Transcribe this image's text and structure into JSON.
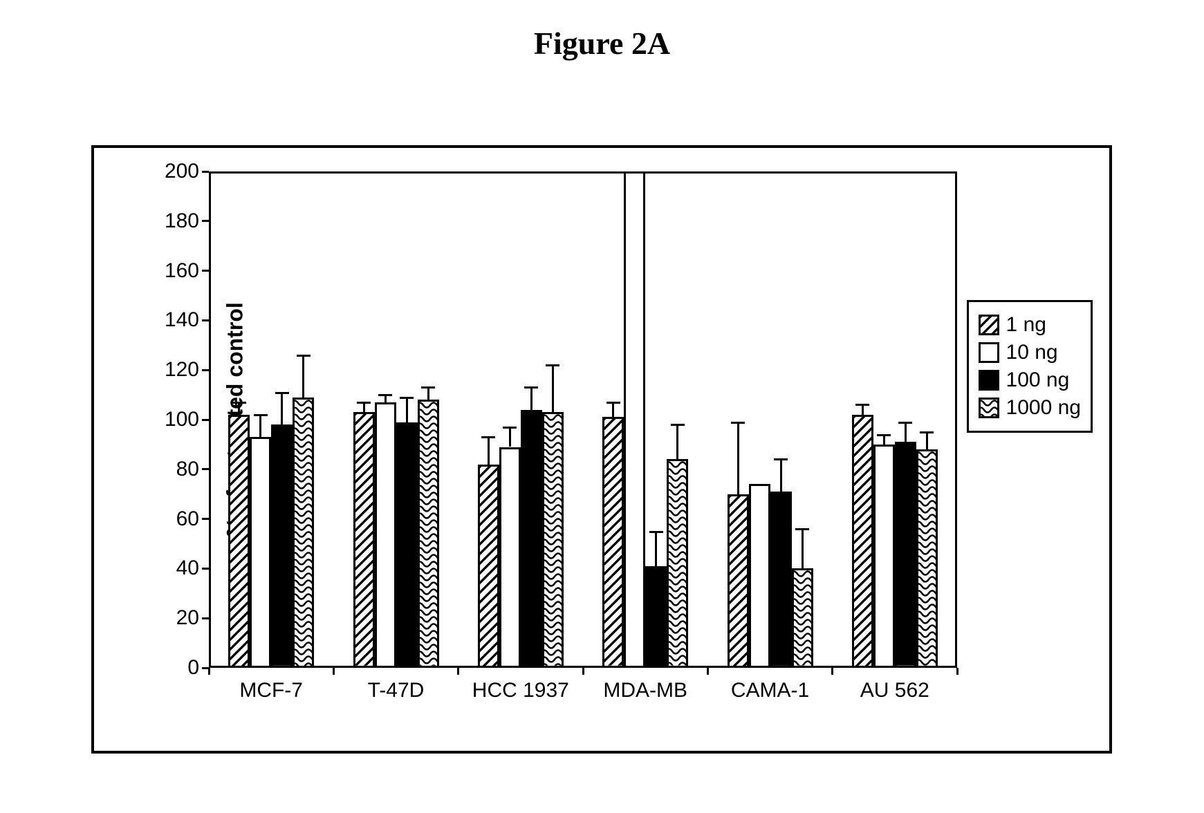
{
  "title": "Figure 2A",
  "chart": {
    "type": "bar",
    "y_axis_title": "% of untreated control",
    "ylim": [
      0,
      200
    ],
    "ytick_step": 20,
    "yticks": [
      0,
      20,
      40,
      60,
      80,
      100,
      120,
      140,
      160,
      180,
      200
    ],
    "categories": [
      "MCF-7",
      "T-47D",
      "HCC 1937",
      "MDA-MB",
      "CAMA-1",
      "AU 562"
    ],
    "series": [
      {
        "name": "1 ng",
        "pattern": "diag",
        "color": "#ffffff"
      },
      {
        "name": "10 ng",
        "pattern": "none",
        "color": "#ffffff"
      },
      {
        "name": "100 ng",
        "pattern": "solid",
        "color": "#000000"
      },
      {
        "name": "1000 ng",
        "pattern": "wave",
        "color": "#ffffff"
      }
    ],
    "values": [
      [
        102,
        93,
        98,
        109
      ],
      [
        103,
        107,
        99,
        108
      ],
      [
        82,
        89,
        104,
        103
      ],
      [
        101,
        200,
        41,
        84
      ],
      [
        70,
        74,
        71,
        40
      ],
      [
        102,
        90,
        91,
        88
      ]
    ],
    "mdamb_inner_split": 133,
    "errors": [
      [
        5,
        9,
        13,
        17
      ],
      [
        4,
        3,
        10,
        5
      ],
      [
        11,
        8,
        9,
        19
      ],
      [
        6,
        0,
        14,
        14
      ],
      [
        29,
        0,
        13,
        16
      ],
      [
        4,
        4,
        8,
        7
      ]
    ],
    "bar_border_color": "#000000",
    "background_color": "#ffffff",
    "axis_fontsize": 30,
    "axis_title_fontsize": 32,
    "legend_fontsize": 30,
    "title_fontsize": 46
  }
}
